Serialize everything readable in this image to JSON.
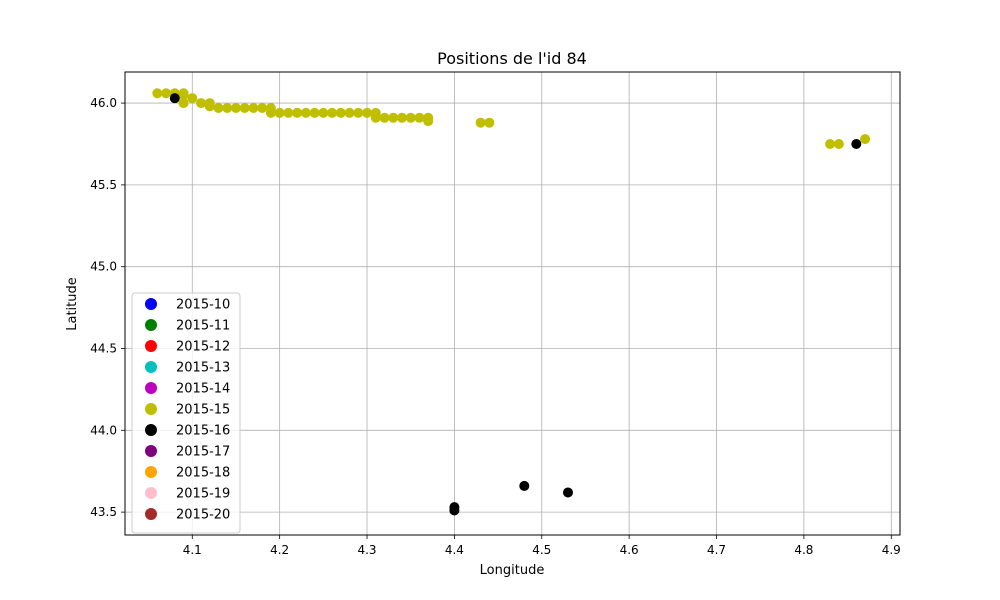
{
  "chart_data": {
    "type": "scatter",
    "title": "Positions de l'id 84",
    "xlabel": "Longitude",
    "ylabel": "Latitude",
    "xlim": [
      4.023,
      4.91
    ],
    "ylim": [
      43.36,
      46.19
    ],
    "xticks": [
      4.1,
      4.2,
      4.3,
      4.4,
      4.5,
      4.6,
      4.7,
      4.8,
      4.9
    ],
    "xtick_labels": [
      "4.1",
      "4.2",
      "4.3",
      "4.4",
      "4.5",
      "4.6",
      "4.7",
      "4.8",
      "4.9"
    ],
    "yticks": [
      43.5,
      44.0,
      44.5,
      45.0,
      45.5,
      46.0
    ],
    "ytick_labels": [
      "43.5",
      "44.0",
      "44.5",
      "45.0",
      "45.5",
      "46.0"
    ],
    "grid": true,
    "legend_position": "lower-left",
    "series": [
      {
        "name": "2015-10",
        "color": "#0000ff",
        "points": []
      },
      {
        "name": "2015-11",
        "color": "#008000",
        "points": []
      },
      {
        "name": "2015-12",
        "color": "#ff0000",
        "points": []
      },
      {
        "name": "2015-13",
        "color": "#00bfbf",
        "points": []
      },
      {
        "name": "2015-14",
        "color": "#bf00bf",
        "points": []
      },
      {
        "name": "2015-15",
        "color": "#bfbf00",
        "points": [
          [
            4.06,
            46.06
          ],
          [
            4.07,
            46.06
          ],
          [
            4.08,
            46.06
          ],
          [
            4.09,
            46.06
          ],
          [
            4.09,
            46.05
          ],
          [
            4.09,
            46.0
          ],
          [
            4.1,
            46.03
          ],
          [
            4.11,
            46.0
          ],
          [
            4.12,
            46.0
          ],
          [
            4.12,
            45.98
          ],
          [
            4.13,
            45.97
          ],
          [
            4.14,
            45.97
          ],
          [
            4.15,
            45.97
          ],
          [
            4.16,
            45.97
          ],
          [
            4.17,
            45.97
          ],
          [
            4.18,
            45.97
          ],
          [
            4.19,
            45.97
          ],
          [
            4.19,
            45.94
          ],
          [
            4.2,
            45.94
          ],
          [
            4.21,
            45.94
          ],
          [
            4.22,
            45.94
          ],
          [
            4.23,
            45.94
          ],
          [
            4.24,
            45.94
          ],
          [
            4.25,
            45.94
          ],
          [
            4.26,
            45.94
          ],
          [
            4.27,
            45.94
          ],
          [
            4.28,
            45.94
          ],
          [
            4.29,
            45.94
          ],
          [
            4.3,
            45.94
          ],
          [
            4.31,
            45.94
          ],
          [
            4.31,
            45.91
          ],
          [
            4.32,
            45.91
          ],
          [
            4.33,
            45.91
          ],
          [
            4.34,
            45.91
          ],
          [
            4.35,
            45.91
          ],
          [
            4.36,
            45.91
          ],
          [
            4.37,
            45.91
          ],
          [
            4.37,
            45.89
          ],
          [
            4.43,
            45.88
          ],
          [
            4.44,
            45.88
          ],
          [
            4.83,
            45.75
          ],
          [
            4.84,
            45.75
          ],
          [
            4.87,
            45.78
          ]
        ]
      },
      {
        "name": "2015-16",
        "color": "#000000",
        "points": [
          [
            4.08,
            46.03
          ],
          [
            4.86,
            45.75
          ],
          [
            4.4,
            43.53
          ],
          [
            4.4,
            43.51
          ],
          [
            4.48,
            43.66
          ],
          [
            4.53,
            43.62
          ]
        ]
      },
      {
        "name": "2015-17",
        "color": "#800080",
        "points": []
      },
      {
        "name": "2015-18",
        "color": "#ffa500",
        "points": []
      },
      {
        "name": "2015-19",
        "color": "#ffc0cb",
        "points": []
      },
      {
        "name": "2015-20",
        "color": "#a52a2a",
        "points": []
      }
    ]
  }
}
